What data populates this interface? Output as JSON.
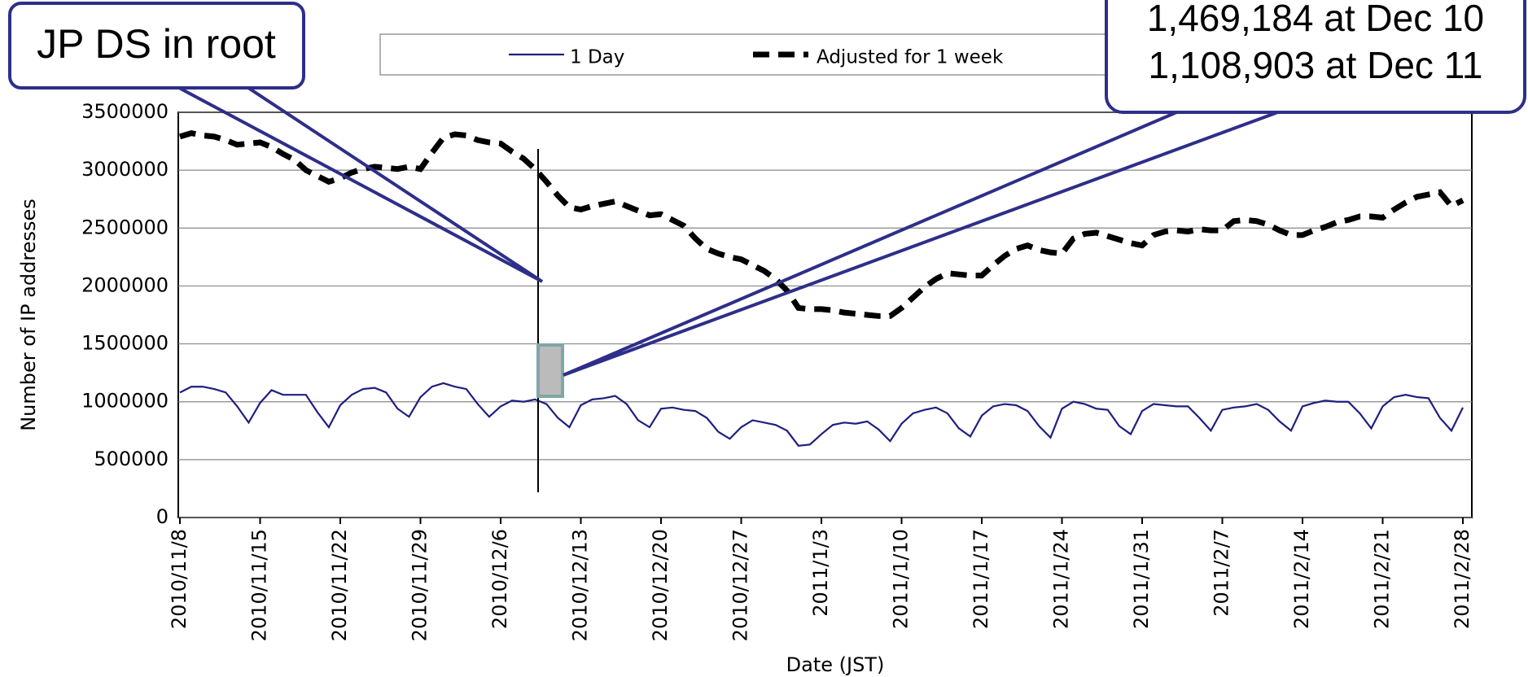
{
  "chart_data": {
    "type": "line",
    "categories": [
      "2010/11/8",
      null,
      null,
      null,
      null,
      null,
      null,
      "2010/11/15",
      null,
      null,
      null,
      null,
      null,
      null,
      "2010/11/22",
      null,
      null,
      null,
      null,
      null,
      null,
      "2010/11/29",
      null,
      null,
      null,
      null,
      null,
      null,
      "2010/12/6",
      null,
      null,
      null,
      null,
      null,
      null,
      "2010/12/13",
      null,
      null,
      null,
      null,
      null,
      null,
      "2010/12/20",
      null,
      null,
      null,
      null,
      null,
      null,
      "2010/12/27",
      null,
      null,
      null,
      null,
      null,
      null,
      "2011/1/3",
      null,
      null,
      null,
      null,
      null,
      null,
      "2011/1/10",
      null,
      null,
      null,
      null,
      null,
      null,
      "2011/1/17",
      null,
      null,
      null,
      null,
      null,
      null,
      "2011/1/24",
      null,
      null,
      null,
      null,
      null,
      null,
      "2011/1/31",
      null,
      null,
      null,
      null,
      null,
      null,
      "2011/2/7",
      null,
      null,
      null,
      null,
      null,
      null,
      "2011/2/14",
      null,
      null,
      null,
      null,
      null,
      null,
      "2011/2/21",
      null,
      null,
      null,
      null,
      null,
      null,
      "2011/2/28"
    ],
    "series": [
      {
        "name": "1 Day",
        "color": "#1f1f80",
        "dashed": false,
        "values": [
          1080000,
          1130000,
          1130000,
          1110000,
          1080000,
          960000,
          820000,
          990000,
          1100000,
          1060000,
          1060000,
          1060000,
          910000,
          780000,
          970000,
          1060000,
          1110000,
          1120000,
          1080000,
          940000,
          870000,
          1040000,
          1130000,
          1160000,
          1130000,
          1110000,
          980000,
          870000,
          960000,
          1010000,
          1000000,
          1020000,
          980000,
          860000,
          780000,
          970000,
          1020000,
          1030000,
          1050000,
          980000,
          840000,
          780000,
          940000,
          950000,
          930000,
          920000,
          860000,
          740000,
          680000,
          780000,
          840000,
          820000,
          800000,
          750000,
          620000,
          630000,
          720000,
          800000,
          820000,
          810000,
          830000,
          760000,
          660000,
          810000,
          900000,
          930000,
          950000,
          900000,
          770000,
          700000,
          880000,
          960000,
          980000,
          970000,
          920000,
          790000,
          690000,
          940000,
          1000000,
          980000,
          940000,
          930000,
          790000,
          720000,
          920000,
          980000,
          970000,
          960000,
          960000,
          860000,
          750000,
          930000,
          950000,
          960000,
          980000,
          930000,
          830000,
          750000,
          960000,
          990000,
          1010000,
          1000000,
          1000000,
          900000,
          770000,
          960000,
          1040000,
          1060000,
          1040000,
          1030000,
          860000,
          750000,
          950000
        ]
      },
      {
        "name": "Adjusted for 1 week",
        "color": "#000000",
        "dashed": true,
        "values": [
          3290000,
          3320000,
          3300000,
          3290000,
          3260000,
          3220000,
          3230000,
          3240000,
          3200000,
          3140000,
          3090000,
          3000000,
          2950000,
          2900000,
          2930000,
          2980000,
          3010000,
          3030000,
          3020000,
          3010000,
          3030000,
          3010000,
          3150000,
          3280000,
          3310000,
          3300000,
          3260000,
          3240000,
          3230000,
          3160000,
          3100000,
          3010000,
          2900000,
          2780000,
          2680000,
          2660000,
          2690000,
          2710000,
          2730000,
          2690000,
          2650000,
          2610000,
          2620000,
          2570000,
          2520000,
          2410000,
          2320000,
          2280000,
          2250000,
          2230000,
          2180000,
          2130000,
          2060000,
          1960000,
          1810000,
          1800000,
          1800000,
          1790000,
          1770000,
          1760000,
          1750000,
          1740000,
          1740000,
          1810000,
          1900000,
          1990000,
          2060000,
          2110000,
          2100000,
          2090000,
          2090000,
          2180000,
          2260000,
          2320000,
          2350000,
          2310000,
          2290000,
          2280000,
          2410000,
          2450000,
          2460000,
          2430000,
          2400000,
          2370000,
          2350000,
          2440000,
          2470000,
          2480000,
          2470000,
          2490000,
          2480000,
          2480000,
          2560000,
          2570000,
          2560000,
          2530000,
          2480000,
          2440000,
          2440000,
          2480000,
          2510000,
          2550000,
          2570000,
          2600000,
          2600000,
          2590000,
          2660000,
          2720000,
          2770000,
          2790000,
          2810000,
          2690000,
          2740000
        ]
      }
    ],
    "ylim": [
      0,
      3500000
    ],
    "yticks": [
      0,
      500000,
      1000000,
      1500000,
      2000000,
      2500000,
      3000000,
      3500000
    ],
    "grid": true,
    "y_label": "Number of IP addresses",
    "x_label": "Date (JST)",
    "annotations": [
      "JP DS in root",
      "1,469,184 at Dec 10",
      "1,108,903 at Dec 11"
    ]
  }
}
